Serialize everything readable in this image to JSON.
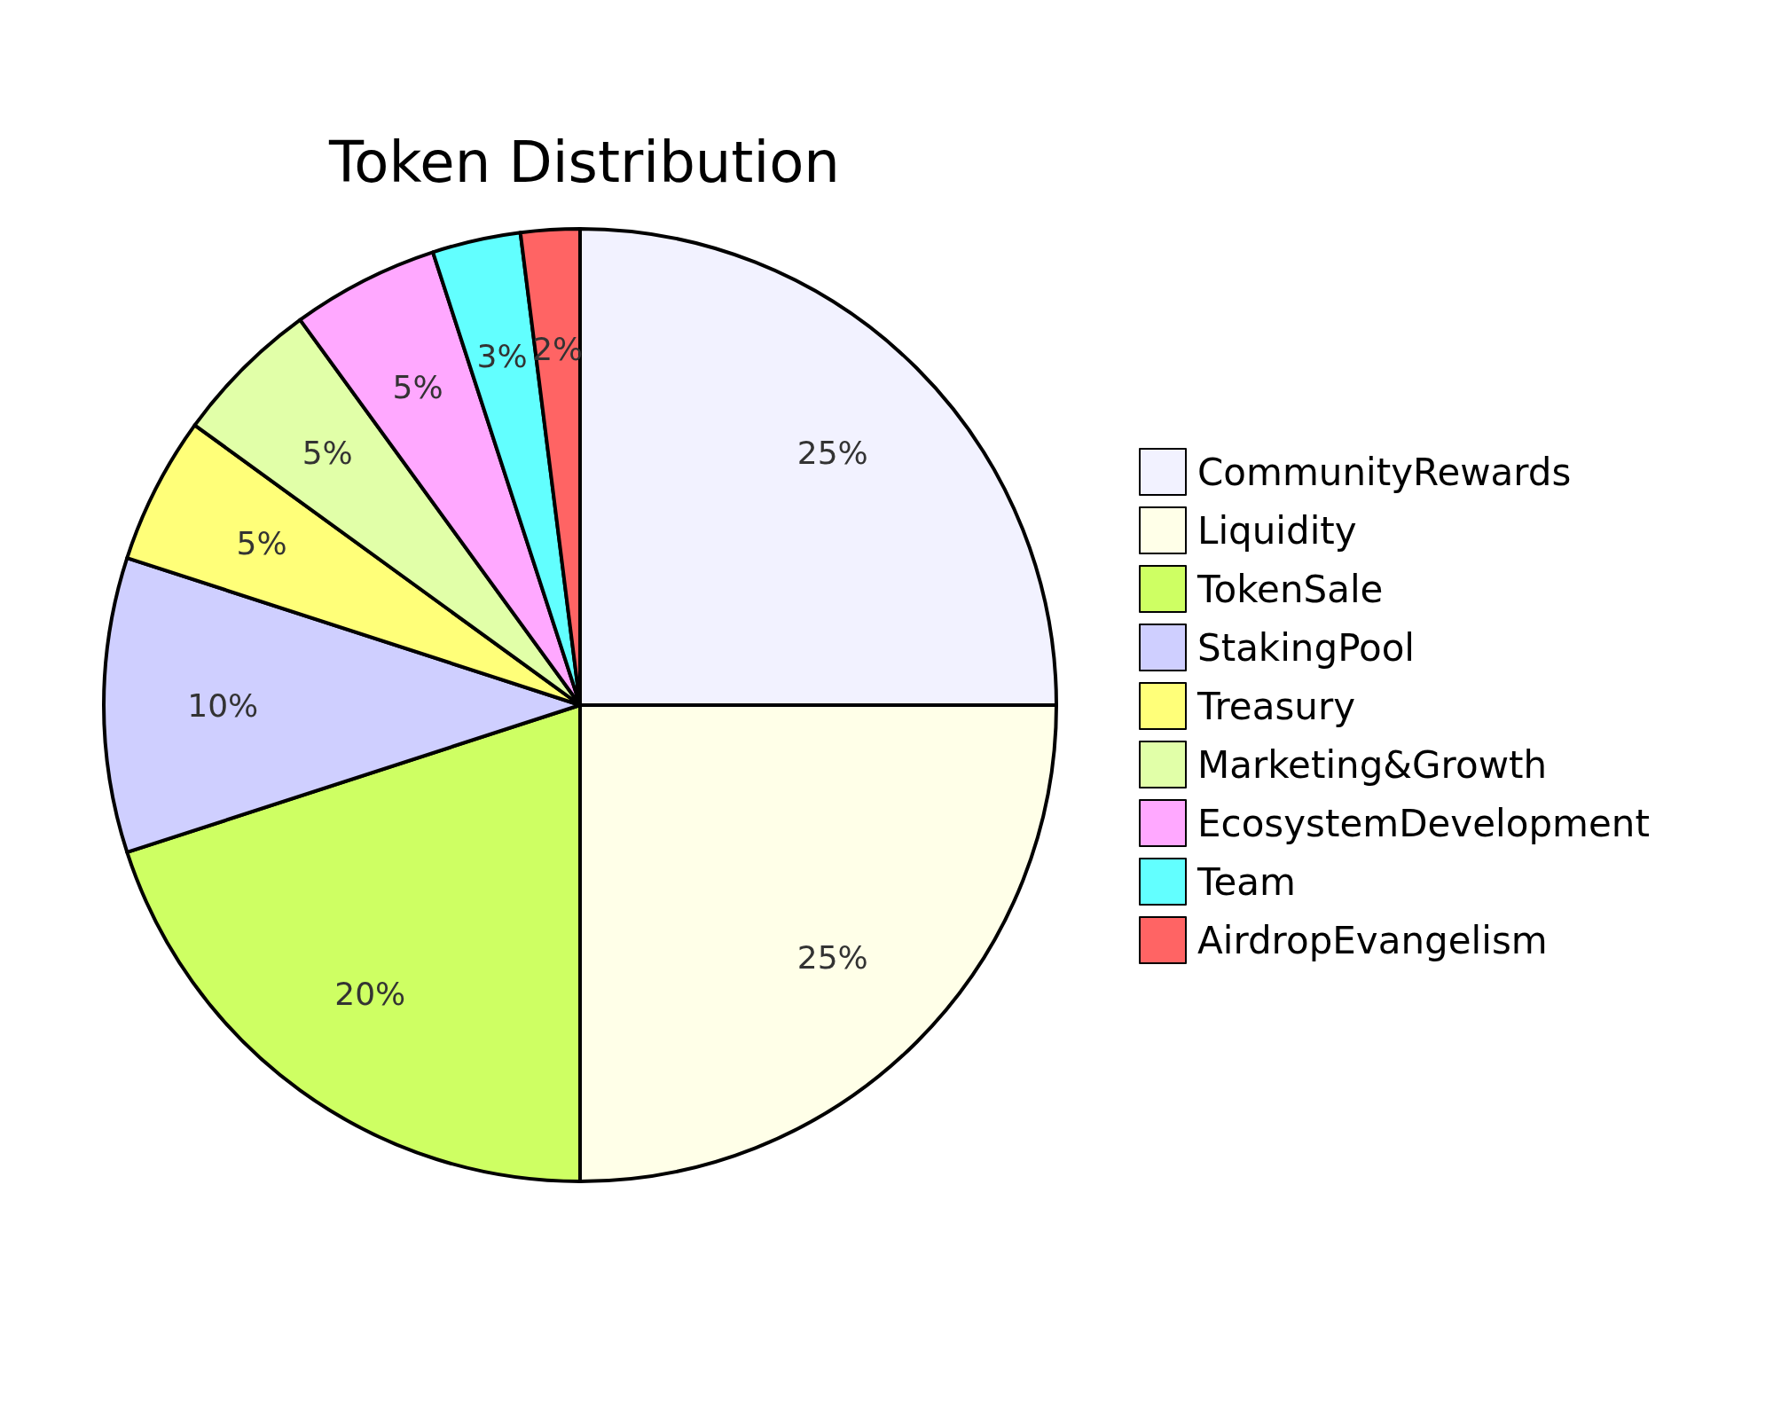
{
  "chart_data": {
    "type": "pie",
    "title": "Token Distribution",
    "categories": [
      "CommunityRewards",
      "Liquidity",
      "TokenSale",
      "StakingPool",
      "Treasury",
      "Marketing&Growth",
      "EcosystemDevelopment",
      "Team",
      "AirdropEvangelism"
    ],
    "values": [
      25,
      25,
      20,
      10,
      5,
      5,
      5,
      3,
      2
    ],
    "value_labels": [
      "25%",
      "25%",
      "20%",
      "10%",
      "5%",
      "5%",
      "5%",
      "3%",
      "2%"
    ],
    "colors": [
      "#f2f2ff",
      "#ffffe8",
      "#ceff63",
      "#cfcfff",
      "#ffff79",
      "#e1ffa8",
      "#ffa8ff",
      "#62ffff",
      "#ff6464"
    ],
    "legend": "right"
  }
}
